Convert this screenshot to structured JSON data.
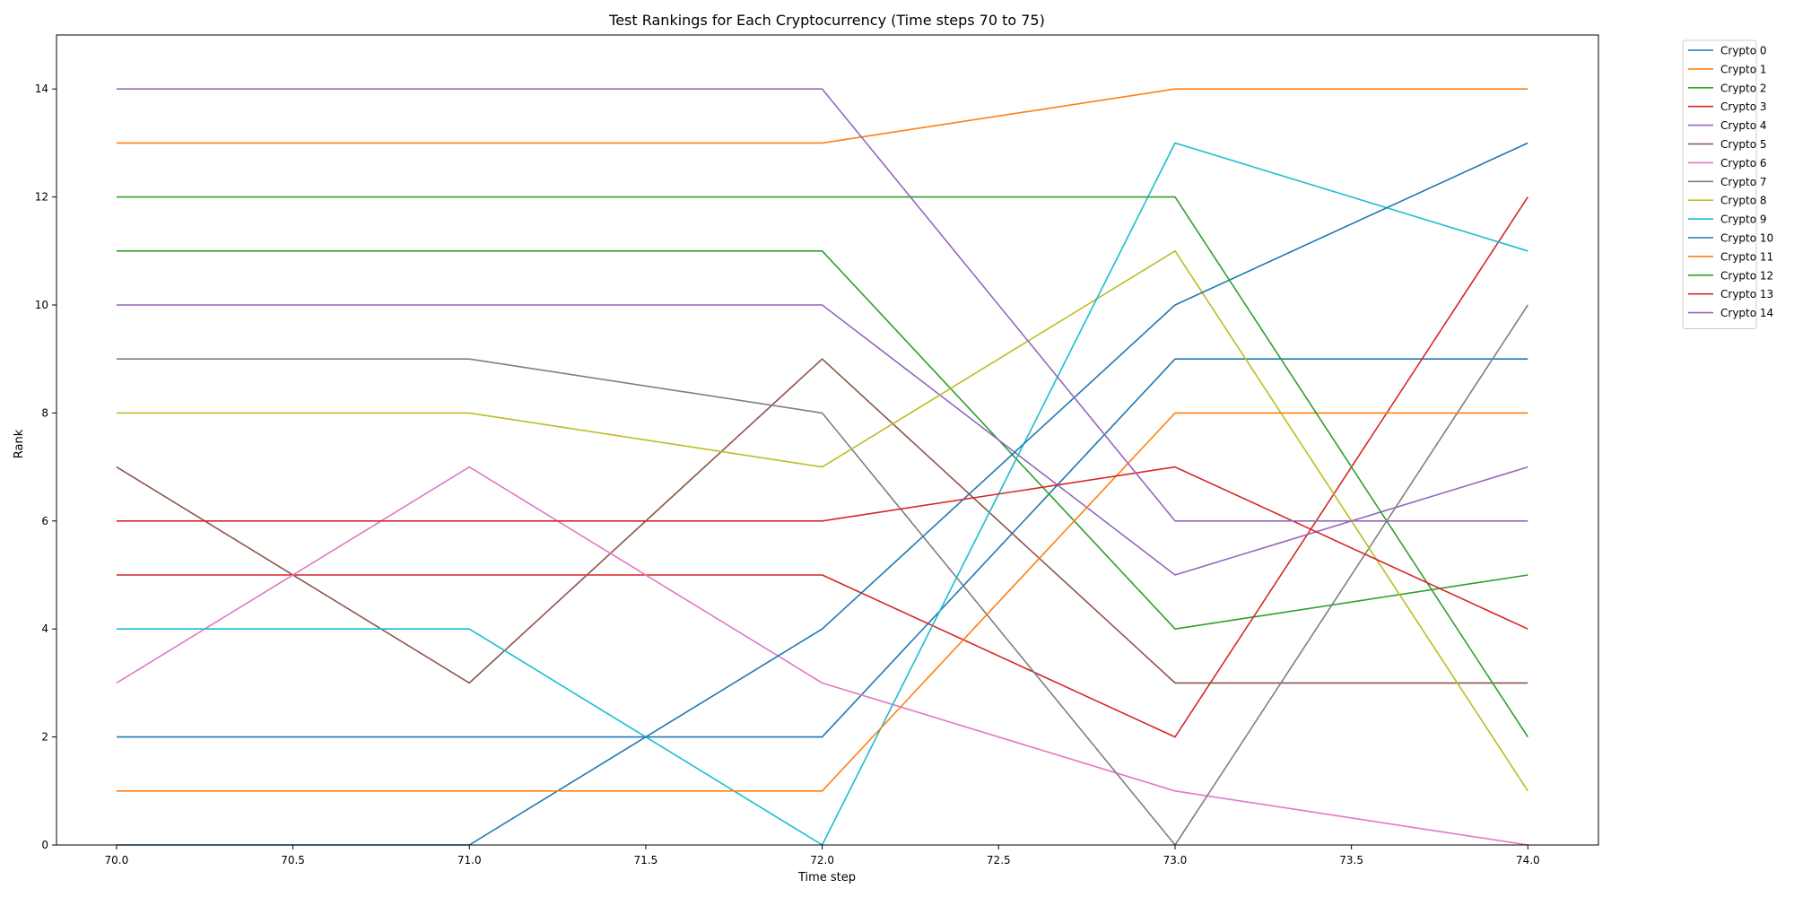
{
  "chart_data": {
    "type": "line",
    "title": "Test Rankings for Each Cryptocurrency (Time steps 70 to 75)",
    "xlabel": "Time step",
    "ylabel": "Rank",
    "xlim": [
      69.83,
      74.2
    ],
    "ylim": [
      0,
      15
    ],
    "xticks": [
      70.0,
      70.5,
      71.0,
      71.5,
      72.0,
      72.5,
      73.0,
      73.5,
      74.0
    ],
    "xtick_labels": [
      "70.0",
      "70.5",
      "71.0",
      "71.5",
      "72.0",
      "72.5",
      "73.0",
      "73.5",
      "74.0"
    ],
    "yticks": [
      0,
      2,
      4,
      6,
      8,
      10,
      12,
      14
    ],
    "ytick_labels": [
      "0",
      "2",
      "4",
      "6",
      "8",
      "10",
      "12",
      "14"
    ],
    "grid": false,
    "legend_position": "outside-top-right",
    "x": [
      70,
      71,
      72,
      73,
      74
    ],
    "series": [
      {
        "name": "Crypto 0",
        "color": "#1f77b4",
        "values": [
          2,
          2,
          2,
          9,
          9
        ]
      },
      {
        "name": "Crypto 1",
        "color": "#ff7f0e",
        "values": [
          13,
          13,
          13,
          14,
          14
        ]
      },
      {
        "name": "Crypto 2",
        "color": "#2ca02c",
        "values": [
          11,
          11,
          11,
          4,
          5
        ]
      },
      {
        "name": "Crypto 3",
        "color": "#d62728",
        "values": [
          5,
          5,
          5,
          2,
          12
        ]
      },
      {
        "name": "Crypto 4",
        "color": "#9467bd",
        "values": [
          10,
          10,
          10,
          5,
          7
        ]
      },
      {
        "name": "Crypto 5",
        "color": "#8c564b",
        "values": [
          7,
          3,
          9,
          3,
          3
        ]
      },
      {
        "name": "Crypto 6",
        "color": "#e377c2",
        "values": [
          3,
          7,
          3,
          1,
          0
        ]
      },
      {
        "name": "Crypto 7",
        "color": "#7f7f7f",
        "values": [
          9,
          9,
          8,
          0,
          10
        ]
      },
      {
        "name": "Crypto 8",
        "color": "#bcbd22",
        "values": [
          8,
          8,
          7,
          11,
          1
        ]
      },
      {
        "name": "Crypto 9",
        "color": "#17becf",
        "values": [
          4,
          4,
          0,
          13,
          11
        ]
      },
      {
        "name": "Crypto 10",
        "color": "#1f77b4",
        "values": [
          0,
          0,
          4,
          10,
          13
        ]
      },
      {
        "name": "Crypto 11",
        "color": "#ff7f0e",
        "values": [
          1,
          1,
          1,
          8,
          8
        ]
      },
      {
        "name": "Crypto 12",
        "color": "#2ca02c",
        "values": [
          12,
          12,
          12,
          12,
          2
        ]
      },
      {
        "name": "Crypto 13",
        "color": "#d62728",
        "values": [
          6,
          6,
          6,
          7,
          4
        ]
      },
      {
        "name": "Crypto 14",
        "color": "#9467bd",
        "values": [
          14,
          14,
          14,
          6,
          6
        ]
      }
    ]
  }
}
